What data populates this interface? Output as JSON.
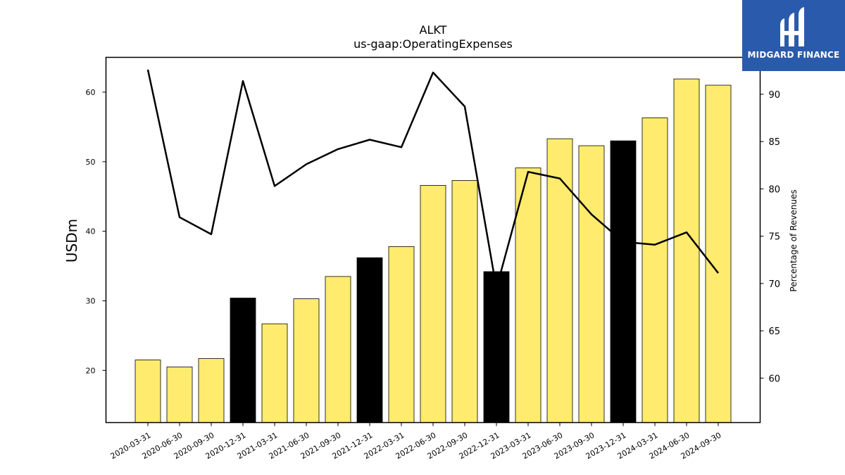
{
  "brand": {
    "name": "MIDGARD FINANCE",
    "color": "#2a5aab",
    "logo_icon": "midgard-logo-icon"
  },
  "chart_data": {
    "type": "bar",
    "title": "ALKT",
    "subtitle": "us-gaap:OperatingExpenses",
    "ylabel": "USDm",
    "y2label": "Percentage of Revenues",
    "categories": [
      "2020-03-31",
      "2020-06-30",
      "2020-09-30",
      "2020-12-31",
      "2021-03-31",
      "2021-06-30",
      "2021-09-30",
      "2021-12-31",
      "2022-03-31",
      "2022-06-30",
      "2022-09-30",
      "2022-12-31",
      "2023-03-31",
      "2023-06-30",
      "2023-09-30",
      "2023-12-31",
      "2024-03-31",
      "2024-06-30",
      "2024-09-30"
    ],
    "series": [
      {
        "type": "bar",
        "axis": "left",
        "values": [
          21.5,
          20.5,
          21.7,
          30.4,
          26.7,
          30.3,
          33.5,
          36.2,
          37.8,
          46.6,
          47.3,
          34.2,
          49.1,
          53.3,
          52.3,
          53.0,
          56.3,
          61.9,
          61.0
        ]
      },
      {
        "type": "line",
        "axis": "right",
        "values": [
          92.6,
          77.0,
          75.2,
          91.4,
          80.3,
          82.6,
          84.2,
          85.2,
          84.4,
          92.3,
          88.7,
          69.5,
          81.8,
          81.1,
          77.3,
          74.4,
          74.1,
          75.4,
          71.1
        ]
      }
    ],
    "highlighted_quarters": [
      "2020-12-31",
      "2021-12-31",
      "2022-12-31",
      "2023-12-31"
    ],
    "colors": {
      "bar": "#ffeb6e",
      "bar_highlight": "#000000",
      "line": "#000000"
    },
    "ylim": [
      12.5,
      65
    ],
    "y2lim": [
      55.3,
      93.9
    ],
    "yticks": [
      20,
      30,
      40,
      50,
      60
    ],
    "y2ticks": [
      60,
      65,
      70,
      75,
      80,
      85,
      90
    ],
    "grid": false,
    "legend": "none"
  }
}
